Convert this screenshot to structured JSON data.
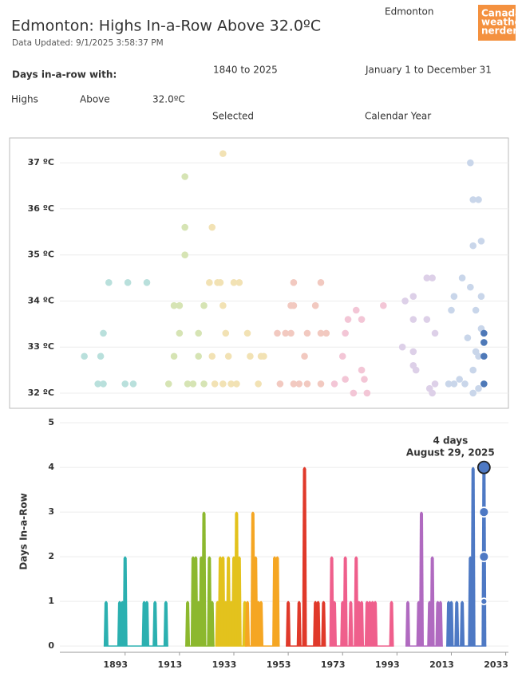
{
  "header": {
    "title": "Edmonton: Highs In-a-Row Above 32.0ºC",
    "subtitle": "Data Updated: 9/1/2025 3:58:37 PM",
    "location": "Edmonton",
    "logo": [
      "Canada",
      "weather",
      "nerdery"
    ]
  },
  "filters": {
    "heading": "Days in-a-row with:",
    "years": "1840 to 2025",
    "dates": "January 1 to December 31",
    "measure": "Highs",
    "direction": "Above",
    "threshold": "32.0ºC",
    "selection": "Selected",
    "period": "Calendar Year"
  },
  "chart_data": [
    {
      "type": "scatter",
      "xlim": [
        1869,
        2034
      ],
      "ylim": [
        31.67,
        37.54
      ],
      "grid": true,
      "yticks": [
        {
          "value": 32,
          "label": "32 ºC"
        },
        {
          "value": 33,
          "label": "33 ºC"
        },
        {
          "value": 34,
          "label": "34 ºC"
        },
        {
          "value": 35,
          "label": "35 ºC"
        },
        {
          "value": 36,
          "label": "36 ºC"
        },
        {
          "value": 37,
          "label": "37 ºC"
        }
      ],
      "series": [
        {
          "color": "#b9e0dc",
          "x": [
            1878,
            1883,
            1884,
            1885,
            1885,
            1887,
            1893,
            1894,
            1896,
            1901
          ],
          "values": [
            32.8,
            32.2,
            32.8,
            33.3,
            32.2,
            34.4,
            32.2,
            34.4,
            32.2,
            34.4
          ]
        },
        {
          "color": "#d6e4b4",
          "x": [
            1909,
            1911,
            1911,
            1913,
            1913,
            1915,
            1915,
            1915,
            1916,
            1918,
            1920,
            1920,
            1922,
            1922
          ],
          "values": [
            32.2,
            33.9,
            32.8,
            33.9,
            33.3,
            36.7,
            35.6,
            35.0,
            32.2,
            32.2,
            32.8,
            33.3,
            33.9,
            32.2
          ]
        },
        {
          "color": "#f2e2b4",
          "x": [
            1924,
            1925,
            1925,
            1926,
            1927,
            1928,
            1929,
            1929,
            1929,
            1930,
            1931,
            1932,
            1933,
            1934,
            1935,
            1938,
            1939,
            1942,
            1943,
            1944
          ],
          "values": [
            34.4,
            32.8,
            35.6,
            32.2,
            34.4,
            34.4,
            33.9,
            37.2,
            32.2,
            33.3,
            32.8,
            32.2,
            34.4,
            32.2,
            34.4,
            33.3,
            32.8,
            32.2,
            32.8,
            32.8
          ]
        },
        {
          "color": "#f2c9c0",
          "x": [
            1949,
            1950,
            1952,
            1954,
            1954,
            1955,
            1955,
            1955,
            1957,
            1959,
            1960,
            1960,
            1963,
            1965,
            1965,
            1965,
            1967
          ],
          "values": [
            33.3,
            32.2,
            33.3,
            33.9,
            33.3,
            34.4,
            33.9,
            32.2,
            32.2,
            32.8,
            32.2,
            33.3,
            33.9,
            34.4,
            33.3,
            32.2,
            33.3
          ]
        },
        {
          "color": "#f3c6d6",
          "x": [
            1970,
            1973,
            1974,
            1974,
            1975,
            1977,
            1978,
            1980,
            1980,
            1981,
            1982,
            1988
          ],
          "values": [
            32.2,
            32.8,
            32.3,
            33.3,
            33.6,
            32.0,
            33.8,
            33.6,
            32.5,
            32.3,
            32.0,
            33.9
          ]
        },
        {
          "color": "#ddd0e8",
          "x": [
            1995,
            1996,
            1999,
            1999,
            1999,
            1999,
            2000,
            2004,
            2004,
            2005,
            2006,
            2007,
            2007,
            2006
          ],
          "values": [
            33.0,
            34.0,
            32.9,
            34.1,
            33.6,
            32.6,
            32.5,
            33.6,
            34.5,
            32.1,
            34.5,
            33.3,
            32.2,
            32.0
          ]
        },
        {
          "color": "#c9d6ea",
          "x": [
            2012,
            2013,
            2014,
            2014,
            2016,
            2017,
            2018,
            2019,
            2020,
            2020,
            2021,
            2021,
            2021,
            2021,
            2022,
            2023,
            2023,
            2024,
            2024,
            2024,
            2022,
            2023
          ],
          "values": [
            32.2,
            33.8,
            32.2,
            34.1,
            32.3,
            34.5,
            32.2,
            33.2,
            34.3,
            37.0,
            36.2,
            35.2,
            32.0,
            32.5,
            33.8,
            32.8,
            36.2,
            35.3,
            33.4,
            34.1,
            32.9,
            32.1
          ]
        },
        {
          "color": "#4e79b8",
          "x": [
            2025,
            2025,
            2025,
            2025
          ],
          "values": [
            33.3,
            33.1,
            32.8,
            32.2
          ]
        }
      ]
    },
    {
      "type": "spike",
      "xlim": [
        1869,
        2034
      ],
      "ylim": [
        -0.14,
        5.27
      ],
      "grid": true,
      "y_label": "Days In-a-Row",
      "xticks": [
        1893,
        1913,
        1933,
        1953,
        1973,
        1993,
        2013,
        2033
      ],
      "yticks": [
        0,
        1,
        2,
        3,
        4,
        5
      ],
      "series": [
        {
          "color": "#2bb0b0",
          "x": [
            1886,
            1891,
            1892,
            1893,
            1900,
            1901,
            1904,
            1908
          ],
          "values": [
            1,
            1,
            1,
            2,
            1,
            1,
            1,
            1
          ]
        },
        {
          "color": "#8cb82e",
          "x": [
            1916,
            1918,
            1919,
            1920,
            1921,
            1922,
            1924,
            1925
          ],
          "values": [
            1,
            2,
            2,
            1,
            2,
            3,
            2,
            1
          ]
        },
        {
          "color": "#e3c21d",
          "x": [
            1927,
            1928,
            1929,
            1930,
            1931,
            1932,
            1933,
            1934,
            1935,
            1937
          ],
          "values": [
            1,
            2,
            2,
            1,
            2,
            1,
            2,
            3,
            2,
            1
          ]
        },
        {
          "color": "#f5a623",
          "x": [
            1938,
            1940,
            1941,
            1942,
            1943,
            1948,
            1949
          ],
          "values": [
            1,
            3,
            2,
            1,
            1,
            2,
            2
          ]
        },
        {
          "color": "#e0392a",
          "x": [
            1953,
            1957,
            1959,
            1963,
            1964,
            1966
          ],
          "values": [
            1,
            1,
            4,
            1,
            1,
            1
          ]
        },
        {
          "color": "#ef5f8c",
          "x": [
            1969,
            1970,
            1973,
            1974,
            1976,
            1978,
            1979,
            1980,
            1982,
            1983,
            1984,
            1985,
            1991
          ],
          "values": [
            2,
            1,
            1,
            2,
            1,
            2,
            1,
            1,
            1,
            1,
            1,
            1,
            1
          ]
        },
        {
          "color": "#b06ac0",
          "x": [
            1997,
            2001,
            2002,
            2005,
            2006,
            2008,
            2009
          ],
          "values": [
            1,
            1,
            3,
            1,
            2,
            1,
            1
          ]
        },
        {
          "color": "#4e79c4",
          "x": [
            2012,
            2013,
            2015,
            2017,
            2020,
            2021,
            2025
          ],
          "values": [
            1,
            1,
            1,
            1,
            2,
            4,
            4
          ]
        }
      ],
      "highlight": {
        "color": "#4e79c4",
        "x": [
          2025,
          2025,
          2025,
          2025
        ],
        "values": [
          1,
          2,
          3,
          4
        ]
      },
      "annotation": [
        "4 days",
        "August 29, 2025"
      ]
    }
  ]
}
